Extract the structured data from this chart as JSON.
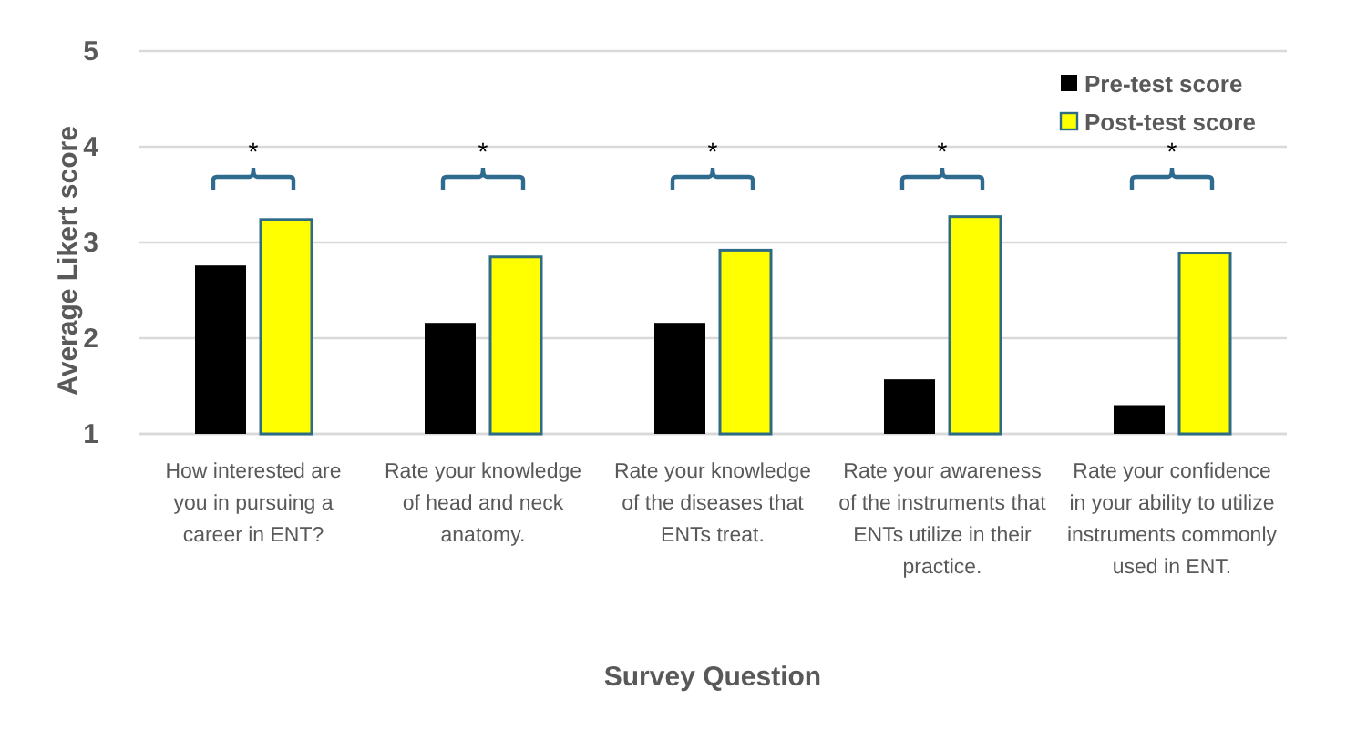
{
  "chart_data": {
    "type": "bar",
    "xlabel": "Survey Question",
    "ylabel": "Average Likert score",
    "categories": [
      "How interested are you in pursuing a career in ENT?",
      "Rate your knowledge of head and neck anatomy.",
      "Rate your knowledge of the diseases that ENTs treat.",
      "Rate your awareness of the instruments that ENTs utilize in their practice.",
      "Rate your confidence in your ability to utilize instruments commonly used in ENT."
    ],
    "series": [
      {
        "name": "Pre-test score",
        "color": "#000000",
        "values": [
          2.76,
          2.16,
          2.16,
          1.57,
          1.3
        ]
      },
      {
        "name": "Post-test score",
        "color": "#ffff00",
        "values": [
          3.24,
          2.85,
          2.92,
          3.27,
          2.89
        ]
      }
    ],
    "ylim": [
      1,
      5
    ],
    "yticks": [
      1,
      2,
      3,
      4,
      5
    ],
    "grid": "y",
    "legend": "top right",
    "annotations": [
      "*",
      "*",
      "*",
      "*",
      "*"
    ]
  }
}
